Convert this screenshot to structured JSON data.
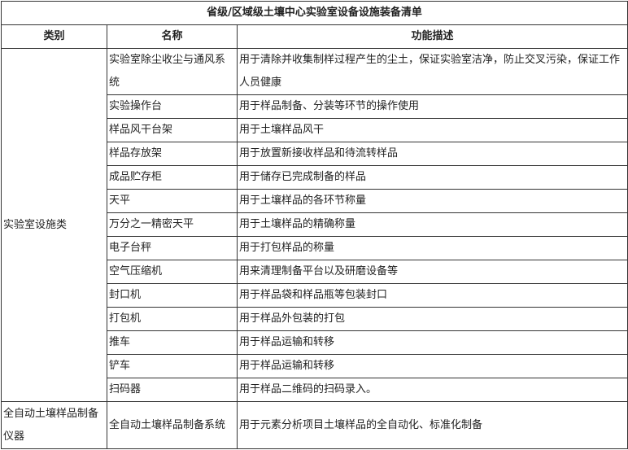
{
  "title": "省级/区域级土壤中心实验室设备设施装备清单",
  "headers": [
    "类别",
    "名称",
    "功能描述"
  ],
  "groups": [
    {
      "category": "实验室设施类",
      "items": [
        {
          "name": "实验室除尘收尘与通风系统",
          "desc": "用于清除并收集制样过程产生的尘土，保证实验室洁净，防止交叉污染，保证工作人员健康"
        },
        {
          "name": "实验操作台",
          "desc": "用于样品制备、分装等环节的操作使用"
        },
        {
          "name": "样品风干台架",
          "desc": "用于土壤样品风干"
        },
        {
          "name": "样品存放架",
          "desc": "用于放置新接收样品和待流转样品"
        },
        {
          "name": "成品贮存柜",
          "desc": "用于储存已完成制备的样品"
        },
        {
          "name": "天平",
          "desc": "用于土壤样品的各环节称量"
        },
        {
          "name": "万分之一精密天平",
          "desc": "用于土壤样品的精确称量"
        },
        {
          "name": "电子台秤",
          "desc": "用于打包样品的称量"
        },
        {
          "name": "空气压缩机",
          "desc": "用来清理制备平台以及研磨设备等"
        },
        {
          "name": "封口机",
          "desc": "用于样品袋和样品瓶等包装封口"
        },
        {
          "name": "打包机",
          "desc": "用于样品外包装的打包"
        },
        {
          "name": "推车",
          "desc": "用于样品运输和转移"
        },
        {
          "name": "铲车",
          "desc": "用于样品运输和转移"
        },
        {
          "name": "扫码器",
          "desc": "用于样品二维码的扫码录入。"
        }
      ]
    },
    {
      "category": "全自动土壤样品制备仪器",
      "items": [
        {
          "name": "全自动土壤样品制备系统",
          "desc": "用于元素分析项目土壤样品的全自动化、标准化制备"
        }
      ]
    }
  ]
}
